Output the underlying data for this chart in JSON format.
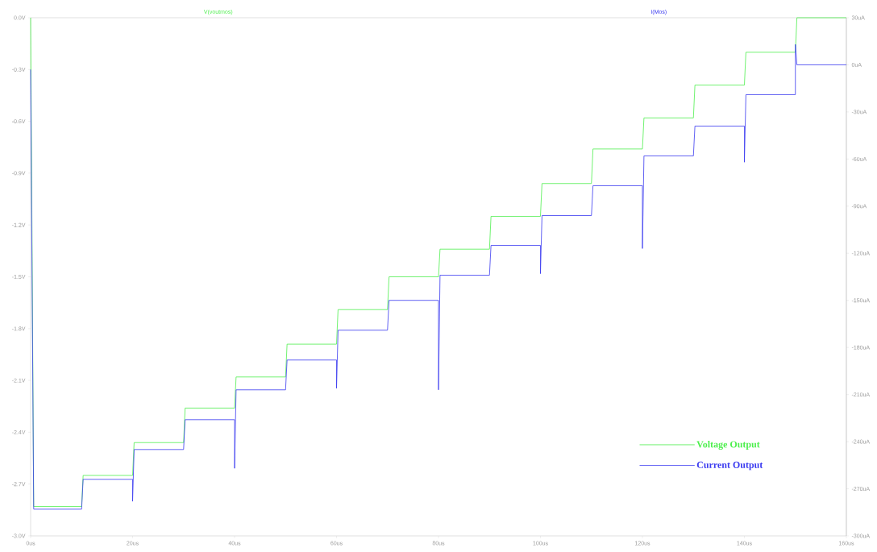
{
  "chart_data": {
    "type": "line",
    "ylabel": "V(voutmos)",
    "y2label": "I(Mos)",
    "xlim": [
      0,
      160
    ],
    "xticks": [
      {
        "value": 0,
        "label": "0us"
      },
      {
        "value": 20,
        "label": "20us"
      },
      {
        "value": 40,
        "label": "40us"
      },
      {
        "value": 60,
        "label": "60us"
      },
      {
        "value": 80,
        "label": "80us"
      },
      {
        "value": 100,
        "label": "100us"
      },
      {
        "value": 120,
        "label": "120us"
      },
      {
        "value": 140,
        "label": "140us"
      },
      {
        "value": 160,
        "label": "160us"
      }
    ],
    "ylim": [
      -3.0,
      0.0
    ],
    "yticks": [
      {
        "value": 0.0,
        "label": "0.0V"
      },
      {
        "value": -0.3,
        "label": "-0.3V"
      },
      {
        "value": -0.6,
        "label": "-0.6V"
      },
      {
        "value": -0.9,
        "label": "-0.9V"
      },
      {
        "value": -1.2,
        "label": "-1.2V"
      },
      {
        "value": -1.5,
        "label": "-1.5V"
      },
      {
        "value": -1.8,
        "label": "-1.8V"
      },
      {
        "value": -2.1,
        "label": "-2.1V"
      },
      {
        "value": -2.4,
        "label": "-2.4V"
      },
      {
        "value": -2.7,
        "label": "-2.7V"
      },
      {
        "value": -3.0,
        "label": "-3.0V"
      }
    ],
    "y2lim": [
      -300,
      30
    ],
    "y2ticks": [
      {
        "value": 30,
        "label": "30uA"
      },
      {
        "value": 0,
        "label": "0uA"
      },
      {
        "value": -30,
        "label": "-30uA"
      },
      {
        "value": -60,
        "label": "-60uA"
      },
      {
        "value": -90,
        "label": "-90uA"
      },
      {
        "value": -120,
        "label": "-120uA"
      },
      {
        "value": -150,
        "label": "-150uA"
      },
      {
        "value": -180,
        "label": "-180uA"
      },
      {
        "value": -210,
        "label": "-210uA"
      },
      {
        "value": -240,
        "label": "-240uA"
      },
      {
        "value": -270,
        "label": "-270uA"
      },
      {
        "value": -300,
        "label": "-300uA"
      }
    ],
    "legend": "bottom right",
    "marker": "none",
    "line_style": "solid",
    "series": [
      {
        "name": "Voltage Output",
        "color": "#4cef4c",
        "x": [
          0,
          0.6,
          10,
          10.3,
          20,
          20.3,
          30,
          30.3,
          40,
          40.3,
          50,
          50.3,
          60,
          60.3,
          70,
          70.3,
          80,
          80.3,
          90,
          90.3,
          100,
          100.3,
          110,
          110.3,
          120,
          120.3,
          130,
          130.3,
          140,
          140.3,
          150,
          150.3,
          160
        ],
        "values": [
          0.0,
          -2.83,
          -2.83,
          -2.65,
          -2.65,
          -2.46,
          -2.46,
          -2.26,
          -2.26,
          -2.08,
          -2.08,
          -1.89,
          -1.89,
          -1.69,
          -1.69,
          -1.5,
          -1.5,
          -1.34,
          -1.34,
          -1.15,
          -1.15,
          -0.96,
          -0.96,
          -0.76,
          -0.76,
          -0.58,
          -0.58,
          -0.39,
          -0.39,
          -0.2,
          -0.2,
          0.0,
          0.0
        ]
      },
      {
        "name": "Current Output",
        "color": "#3a3af0",
        "axis": "y2",
        "x": [
          0,
          0.6,
          10,
          10.3,
          20,
          20,
          20.3,
          30,
          30.3,
          40,
          40,
          40.3,
          50,
          50.3,
          60,
          60,
          60.3,
          70,
          70.3,
          80,
          80,
          80.3,
          90,
          90.3,
          100,
          100,
          100.3,
          110,
          110.3,
          120,
          120,
          120.3,
          130,
          130.3,
          140,
          140,
          140.3,
          150,
          150,
          150.3,
          160
        ],
        "values": [
          -3,
          -283,
          -283,
          -264,
          -264,
          -278,
          -245,
          -245,
          -226,
          -226,
          -257,
          -207,
          -207,
          -188,
          -188,
          -206,
          -169,
          -169,
          -150,
          -150,
          -207,
          -134,
          -134,
          -115,
          -115,
          -133,
          -96,
          -96,
          -77,
          -77,
          -117,
          -58,
          -58,
          -39,
          -39,
          -62,
          -19,
          -19,
          13,
          0,
          0
        ]
      }
    ]
  }
}
